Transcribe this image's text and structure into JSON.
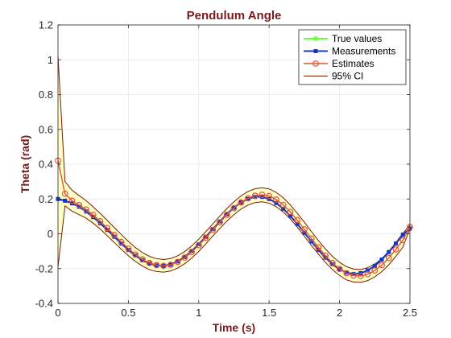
{
  "chart_data": {
    "type": "line",
    "title": "Pendulum Angle",
    "xlabel": "Time (s)",
    "ylabel": "Theta (rad)",
    "xlim": [
      0,
      2.5
    ],
    "ylim": [
      -0.4,
      1.2
    ],
    "xticks": [
      "0",
      "0.5",
      "1",
      "1.5",
      "2",
      "2.5"
    ],
    "yticks": [
      "-0.4",
      "-0.2",
      "0",
      "0.2",
      "0.4",
      "0.6",
      "0.8",
      "1",
      "1.2"
    ],
    "grid": true,
    "legend_position": "top-right",
    "legend": [
      "True values",
      "Measurements",
      "Estimates",
      "95% CI"
    ],
    "colors": {
      "true_values": "#66ff33",
      "measurements": "#1a33cc",
      "estimates": "#e0553a",
      "ci_line": "#7a1a00",
      "ci_fill": "#ffffc8",
      "title": "#7a1a1a"
    },
    "x": [
      0,
      0.05,
      0.1,
      0.15,
      0.2,
      0.25,
      0.3,
      0.35,
      0.4,
      0.45,
      0.5,
      0.55,
      0.6,
      0.65,
      0.7,
      0.75,
      0.8,
      0.85,
      0.9,
      0.95,
      1.0,
      1.05,
      1.1,
      1.15,
      1.2,
      1.25,
      1.3,
      1.35,
      1.4,
      1.45,
      1.5,
      1.55,
      1.6,
      1.65,
      1.7,
      1.75,
      1.8,
      1.85,
      1.9,
      1.95,
      2.0,
      2.05,
      2.1,
      2.15,
      2.2,
      2.25,
      2.3,
      2.35,
      2.4,
      2.45,
      2.5
    ],
    "series": [
      {
        "name": "True values",
        "values": [
          0.2,
          0.19,
          0.175,
          0.155,
          0.128,
          0.096,
          0.06,
          0.022,
          -0.017,
          -0.056,
          -0.093,
          -0.125,
          -0.152,
          -0.171,
          -0.182,
          -0.184,
          -0.176,
          -0.159,
          -0.133,
          -0.099,
          -0.06,
          -0.017,
          0.027,
          0.071,
          0.113,
          0.15,
          0.18,
          0.201,
          0.212,
          0.212,
          0.2,
          0.177,
          0.144,
          0.103,
          0.056,
          0.006,
          -0.044,
          -0.093,
          -0.137,
          -0.175,
          -0.204,
          -0.223,
          -0.231,
          -0.226,
          -0.211,
          -0.184,
          -0.148,
          -0.105,
          -0.056,
          -0.005,
          0.03
        ]
      },
      {
        "name": "Measurements",
        "values": [
          0.2,
          0.19,
          0.175,
          0.155,
          0.128,
          0.096,
          0.06,
          0.022,
          -0.017,
          -0.056,
          -0.093,
          -0.125,
          -0.152,
          -0.171,
          -0.182,
          -0.184,
          -0.176,
          -0.159,
          -0.133,
          -0.099,
          -0.06,
          -0.017,
          0.027,
          0.071,
          0.113,
          0.15,
          0.18,
          0.201,
          0.212,
          0.212,
          0.2,
          0.177,
          0.144,
          0.103,
          0.056,
          0.006,
          -0.044,
          -0.093,
          -0.137,
          -0.175,
          -0.204,
          -0.223,
          -0.231,
          -0.226,
          -0.211,
          -0.184,
          -0.148,
          -0.105,
          -0.056,
          -0.005,
          0.03
        ]
      },
      {
        "name": "Estimates",
        "values": [
          0.42,
          0.23,
          0.19,
          0.165,
          0.14,
          0.108,
          0.072,
          0.033,
          -0.007,
          -0.047,
          -0.085,
          -0.119,
          -0.147,
          -0.168,
          -0.18,
          -0.184,
          -0.178,
          -0.162,
          -0.137,
          -0.105,
          -0.066,
          -0.023,
          0.022,
          0.066,
          0.109,
          0.147,
          0.18,
          0.204,
          0.219,
          0.224,
          0.217,
          0.197,
          0.166,
          0.126,
          0.078,
          0.026,
          -0.027,
          -0.078,
          -0.126,
          -0.168,
          -0.202,
          -0.227,
          -0.24,
          -0.242,
          -0.232,
          -0.211,
          -0.18,
          -0.139,
          -0.09,
          -0.037,
          0.04
        ]
      }
    ],
    "ci": {
      "name": "95% CI",
      "upper": [
        1.02,
        0.3,
        0.25,
        0.22,
        0.19,
        0.155,
        0.117,
        0.077,
        0.036,
        -0.005,
        -0.044,
        -0.079,
        -0.108,
        -0.13,
        -0.143,
        -0.148,
        -0.142,
        -0.127,
        -0.102,
        -0.07,
        -0.031,
        0.012,
        0.057,
        0.102,
        0.145,
        0.184,
        0.218,
        0.243,
        0.259,
        0.264,
        0.258,
        0.238,
        0.207,
        0.166,
        0.118,
        0.066,
        0.013,
        -0.039,
        -0.087,
        -0.13,
        -0.164,
        -0.189,
        -0.203,
        -0.205,
        -0.195,
        -0.174,
        -0.142,
        -0.1,
        -0.05,
        0.003,
        0.05
      ],
      "lower": [
        -0.19,
        0.16,
        0.13,
        0.11,
        0.09,
        0.061,
        0.027,
        -0.011,
        -0.05,
        -0.089,
        -0.126,
        -0.159,
        -0.186,
        -0.206,
        -0.217,
        -0.22,
        -0.214,
        -0.197,
        -0.172,
        -0.14,
        -0.101,
        -0.058,
        -0.013,
        0.031,
        0.073,
        0.11,
        0.142,
        0.165,
        0.179,
        0.184,
        0.176,
        0.156,
        0.125,
        0.086,
        0.038,
        -0.014,
        -0.067,
        -0.117,
        -0.165,
        -0.206,
        -0.24,
        -0.265,
        -0.277,
        -0.279,
        -0.269,
        -0.248,
        -0.218,
        -0.178,
        -0.13,
        -0.077,
        0.03
      ]
    }
  }
}
